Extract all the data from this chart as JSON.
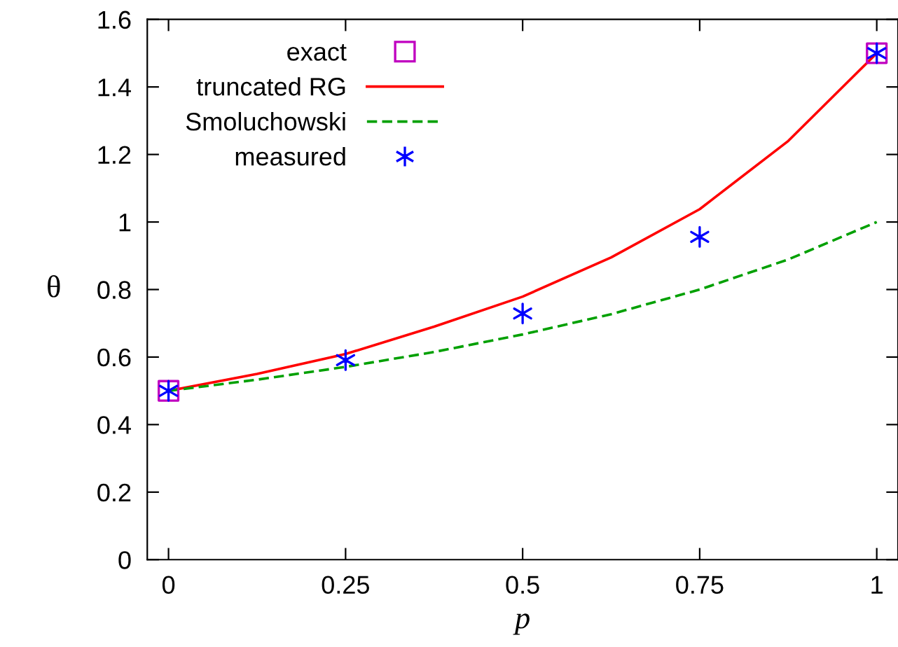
{
  "chart_data": {
    "type": "line",
    "xlabel": "p",
    "ylabel": "θ",
    "xlim": [
      -0.03,
      1.03
    ],
    "xticks": [
      0,
      0.25,
      0.5,
      0.75,
      1
    ],
    "ylim": [
      0,
      1.6
    ],
    "yticks": [
      0,
      0.2,
      0.4,
      0.6,
      0.8,
      1,
      1.2,
      1.4,
      1.6
    ],
    "grid": false,
    "legend": "top left",
    "series": [
      {
        "name": "exact",
        "type": "scatter",
        "marker": "square",
        "color": "#c000c0",
        "x": [
          0,
          1
        ],
        "values": [
          0.5,
          1.5
        ]
      },
      {
        "name": "truncated RG",
        "line_style": "solid",
        "color": "#ff0000",
        "x": [
          0,
          0.125,
          0.25,
          0.375,
          0.5,
          0.625,
          0.75,
          0.875,
          1
        ],
        "values": [
          0.5,
          0.55,
          0.609,
          0.69,
          0.779,
          0.895,
          1.038,
          1.24,
          1.5
        ]
      },
      {
        "name": "Smoluchowski",
        "line_style": "dashed",
        "color": "#00a000",
        "x": [
          0,
          0.125,
          0.25,
          0.375,
          0.5,
          0.625,
          0.75,
          0.875,
          1
        ],
        "values": [
          0.5,
          0.533,
          0.571,
          0.615,
          0.667,
          0.727,
          0.8,
          0.889,
          1.0
        ]
      },
      {
        "name": "measured",
        "type": "scatter",
        "marker": "cross",
        "color": "#0000ff",
        "x": [
          0,
          0.25,
          0.5,
          0.75,
          1
        ],
        "values": [
          0.5,
          0.591,
          0.729,
          0.956,
          1.5
        ]
      }
    ]
  }
}
